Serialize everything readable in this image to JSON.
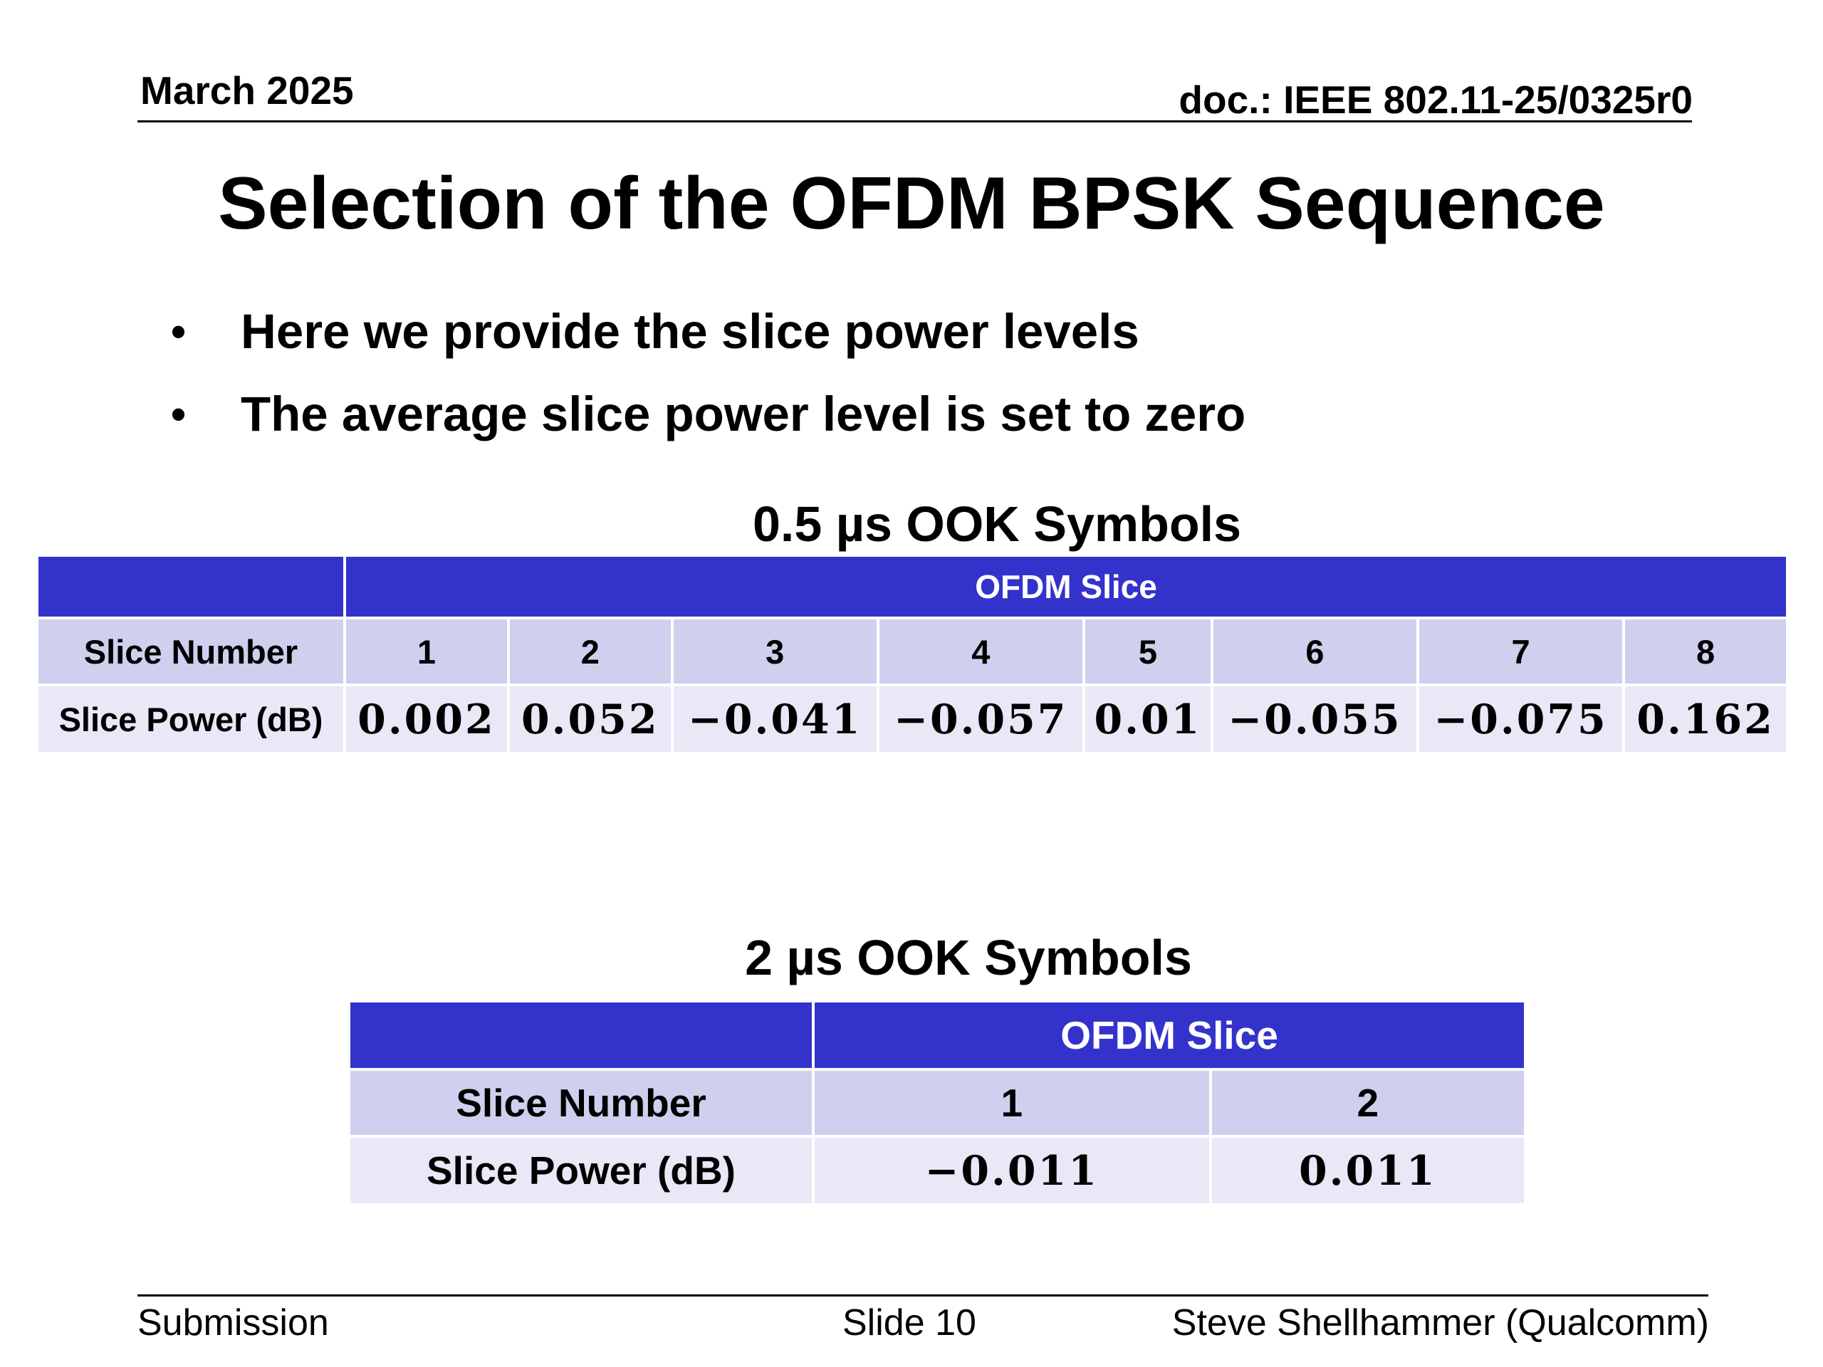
{
  "header": {
    "date": "March 2025",
    "doc": "doc.: IEEE 802.11-25/0325r0"
  },
  "title": "Selection of the OFDM BPSK Sequence",
  "bullets": [
    "Here we provide the slice power levels",
    "The average slice power level is set to zero"
  ],
  "table1": {
    "caption": "0.5 µs OOK Symbols",
    "group_header": "OFDM Slice",
    "row_labels": [
      "Slice Number",
      "Slice Power (dB)"
    ],
    "slice_numbers": [
      "1",
      "2",
      "3",
      "4",
      "5",
      "6",
      "7",
      "8"
    ],
    "slice_powers": [
      "0.002",
      "0.052",
      "−0.041",
      "−0.057",
      "0.01",
      "−0.055",
      "−0.075",
      "0.162"
    ]
  },
  "table2": {
    "caption": "2 µs OOK Symbols",
    "group_header": "OFDM Slice",
    "row_labels": [
      "Slice Number",
      "Slice Power (dB)"
    ],
    "slice_numbers": [
      "1",
      "2"
    ],
    "slice_powers": [
      "−0.011",
      "0.011"
    ]
  },
  "footer": {
    "left": "Submission",
    "center": "Slide 10",
    "right": "Steve Shellhammer (Qualcomm)"
  }
}
